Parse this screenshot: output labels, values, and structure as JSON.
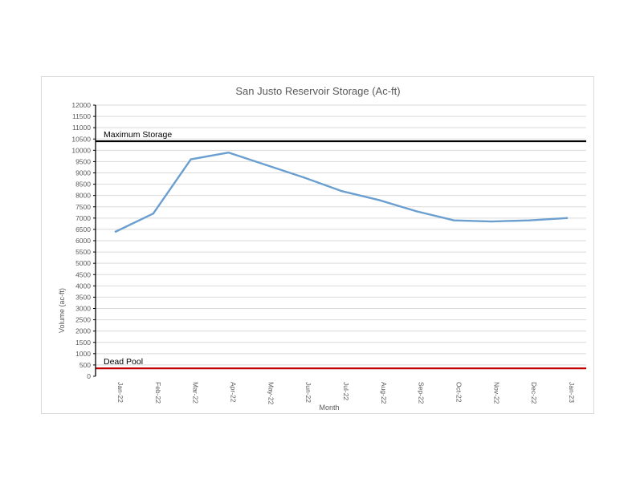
{
  "chart_data": {
    "type": "line",
    "title": "San Justo Reservoir Storage (Ac-ft)",
    "xlabel": "Month",
    "ylabel": "Volume (ac-ft)",
    "ylim": [
      0,
      12000
    ],
    "ytick_step": 500,
    "categories": [
      "Jan-22",
      "Feb-22",
      "Mar-22",
      "Apr-22",
      "May-22",
      "Jun-22",
      "Jul-22",
      "Aug-22",
      "Sep-22",
      "Oct-22",
      "Nov-22",
      "Dec-22",
      "Jan-23"
    ],
    "series": [
      {
        "values": [
          6400,
          7200,
          9600,
          9900,
          9350,
          8800,
          8200,
          7800,
          7300,
          6900,
          6850,
          6900,
          7000
        ],
        "color": "#6a9fd0"
      }
    ],
    "reference_lines": [
      {
        "label": "Maximum Storage",
        "value": 10400,
        "color": "#000000"
      },
      {
        "label": "Dead Pool",
        "value": 350,
        "color": "#c00000"
      }
    ],
    "grid": true,
    "legend": "none"
  }
}
